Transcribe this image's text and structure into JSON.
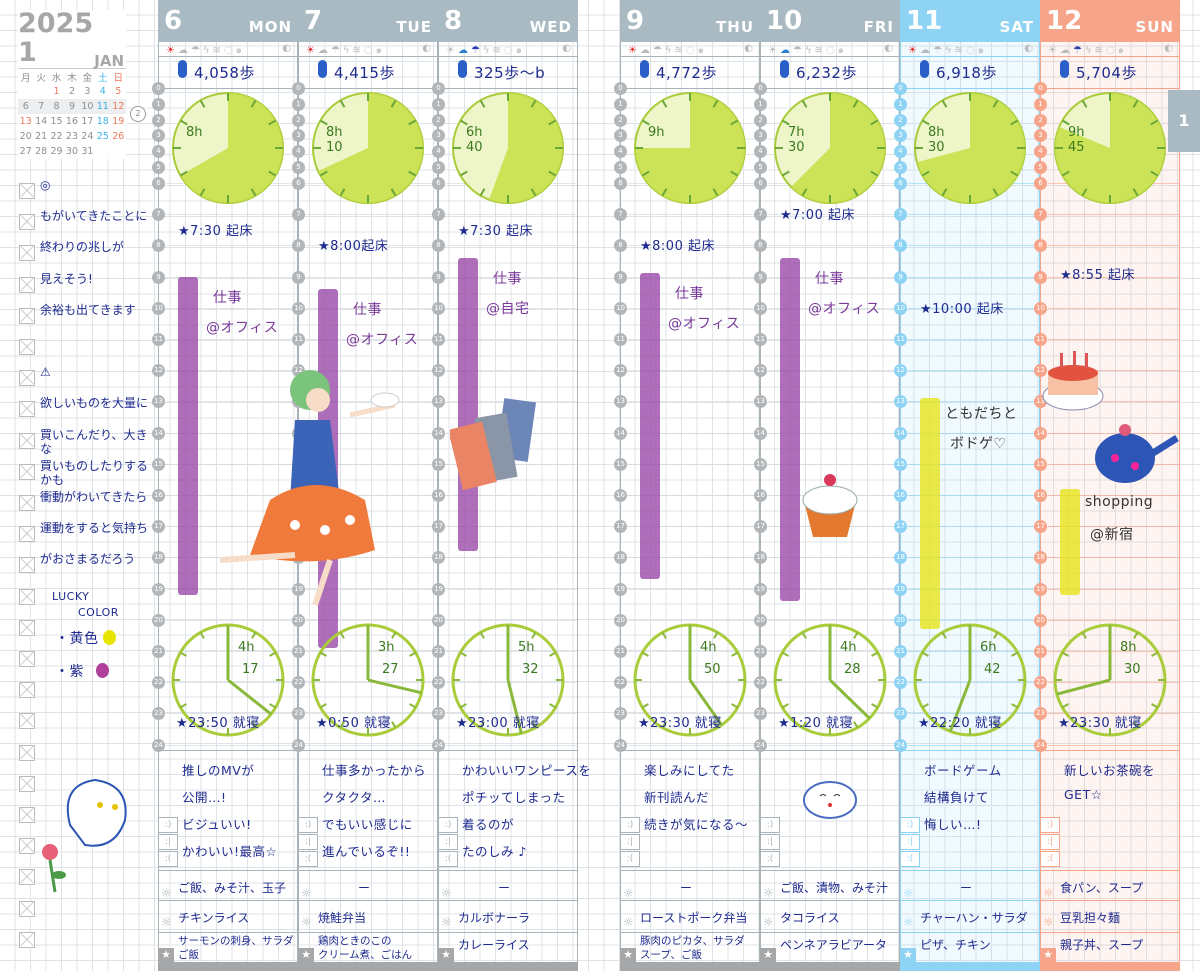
{
  "calendar": {
    "year": "2025",
    "month": "1",
    "month_name": "JAN",
    "weekdays": [
      "月",
      "火",
      "水",
      "木",
      "金",
      "土",
      "日"
    ],
    "weeks": [
      [
        "",
        "",
        "1",
        "2",
        "3",
        "4",
        "5"
      ],
      [
        "6",
        "7",
        "8",
        "9",
        "10",
        "11",
        "12"
      ],
      [
        "13",
        "14",
        "15",
        "16",
        "17",
        "18",
        "19"
      ],
      [
        "20",
        "21",
        "22",
        "23",
        "24",
        "25",
        "26"
      ],
      [
        "27",
        "28",
        "29",
        "30",
        "31",
        "",
        ""
      ]
    ],
    "current_week_badge": "2"
  },
  "notes": {
    "lines": [
      "◎",
      "もがいてきたことに",
      "終わりの兆しが",
      "見えそう!",
      "余裕も出てきます",
      "",
      "⚠",
      "欲しいものを大量に",
      "買いこんだり、大きな",
      "買いものしたりするかも",
      "衝動がわいてきたら",
      "運動をすると気持ち",
      "がおさまるだろう"
    ],
    "lucky_title_1": "LUCKY",
    "lucky_title_2": "COLOR",
    "lucky_colors": [
      {
        "label": "・黄色",
        "swatch": "#e8e400"
      },
      {
        "label": "・紫",
        "swatch": "#b0409a"
      }
    ]
  },
  "month_tab": "1",
  "colors": {
    "weekday": "#a9bac3",
    "saturday": "#8fd3f4",
    "sunday": "#f6a58a",
    "ink": "#1f2b8f",
    "sleep": "#c8e04a",
    "work": "#9a4aa8",
    "play": "#e6e41a"
  },
  "weather_icons": [
    "sun-icon",
    "cloud-icon",
    "umbrella-icon",
    "lightning-icon",
    "wind-icon",
    "snow-icon",
    "typhoon-icon",
    "moon-icon"
  ],
  "days": [
    {
      "date": "6",
      "dow": "MON",
      "theme": "weekday",
      "weather": [
        "sun-icon"
      ],
      "steps": "4,058歩",
      "sleep": "8h",
      "sleep_hours": 8,
      "wake": "★7:30 起床",
      "wake_hour": 7.5,
      "event": [
        "仕事",
        "@オフィス"
      ],
      "bar": [
        9,
        19.2
      ],
      "bar_kind": "work",
      "free": [
        "4h",
        "17"
      ],
      "free_hours": 4.28,
      "bed": "★23:50 就寝",
      "diary": [
        "推しのMVが",
        "公開…!",
        "ビジュいい!",
        "かわいい!最高☆"
      ],
      "breakfast": [
        "ご飯、みそ汁、玉子"
      ],
      "lunch": [
        "チキンライス"
      ],
      "dinner": [
        "サーモンの刺身、サラダ",
        "ご飯"
      ]
    },
    {
      "date": "7",
      "dow": "TUE",
      "theme": "weekday",
      "weather": [
        "sun-icon"
      ],
      "steps": "4,415歩",
      "sleep": "8h 10",
      "sleep_hours": 8.17,
      "wake": "★8:00起床",
      "wake_hour": 8,
      "event": [
        "仕事",
        "@オフィス"
      ],
      "bar": [
        9.4,
        20.9
      ],
      "bar_kind": "work",
      "free": [
        "3h",
        "27"
      ],
      "free_hours": 3.45,
      "bed": "★0:50 就寝",
      "diary": [
        "仕事多かったから",
        "クタクタ…",
        "でもいい感じに",
        "進んでいるぞ!!"
      ],
      "breakfast": [
        "ー"
      ],
      "lunch": [
        "焼鮭弁当"
      ],
      "dinner": [
        "鶏肉ときのこの",
        "クリーム煮、ごはん"
      ]
    },
    {
      "date": "8",
      "dow": "WED",
      "theme": "weekday",
      "weather": [
        "cloud-icon",
        "umbrella-icon"
      ],
      "steps": "325歩〜b",
      "sleep": "6h 40",
      "sleep_hours": 6.67,
      "wake": "★7:30 起床",
      "wake_hour": 7.5,
      "event": [
        "仕事",
        "@自宅"
      ],
      "bar": [
        8.4,
        17.8
      ],
      "bar_kind": "work",
      "free": [
        "5h",
        "32"
      ],
      "free_hours": 5.53,
      "bed": "★23:00 就寝",
      "diary": [
        "かわいいワンピースを",
        "ポチッてしまった",
        "着るのが",
        "たのしみ ♪"
      ],
      "breakfast": [
        "ー"
      ],
      "lunch": [
        "カルボナーラ"
      ],
      "dinner": [
        "カレーライス"
      ]
    },
    {
      "date": "9",
      "dow": "THU",
      "theme": "weekday",
      "weather": [
        "sun-icon"
      ],
      "steps": "4,772歩",
      "sleep": "9h",
      "sleep_hours": 9,
      "wake": "★8:00 起床",
      "wake_hour": 8,
      "event": [
        "仕事",
        "@オフィス"
      ],
      "bar": [
        8.9,
        18.7
      ],
      "bar_kind": "work",
      "free": [
        "4h",
        "50"
      ],
      "free_hours": 4.83,
      "bed": "★23:30 就寝",
      "diary": [
        "楽しみにしてた",
        "新刊読んだ",
        "続きが気になる〜"
      ],
      "breakfast": [
        "ー"
      ],
      "lunch": [
        "ローストポーク弁当"
      ],
      "dinner": [
        "豚肉のピカタ、サラダ",
        "スープ、ご飯"
      ]
    },
    {
      "date": "10",
      "dow": "FRI",
      "theme": "weekday",
      "weather": [
        "cloud-icon"
      ],
      "steps": "6,232歩",
      "sleep": "7h 30",
      "sleep_hours": 7.5,
      "wake": "★7:00 起床",
      "wake_hour": 7,
      "event": [
        "仕事",
        "@オフィス"
      ],
      "bar": [
        8.4,
        19.4
      ],
      "bar_kind": "work",
      "free": [
        "4h",
        "28"
      ],
      "free_hours": 4.47,
      "bed": "★1:20 就寝",
      "diary": [],
      "breakfast": [
        "ご飯、漬物、みそ汁"
      ],
      "lunch": [
        "タコライス"
      ],
      "dinner": [
        "ペンネアラビアータ"
      ]
    },
    {
      "date": "11",
      "dow": "SAT",
      "theme": "saturday",
      "weather": [
        "sun-icon"
      ],
      "steps": "6,918歩",
      "sleep": "8h 30",
      "sleep_hours": 8.5,
      "wake": "★10:00 起床",
      "wake_hour": 10,
      "event": [
        "ともだちと",
        "ボドゲ♡"
      ],
      "bar": [
        12.9,
        20.3
      ],
      "bar_kind": "play",
      "free": [
        "6h",
        "42"
      ],
      "free_hours": 6.7,
      "bed": "★22:20 就寝",
      "diary": [
        "ボードゲーム",
        "結構負けて",
        "悔しい…!"
      ],
      "breakfast": [
        "ー"
      ],
      "lunch": [
        "チャーハン・サラダ"
      ],
      "dinner": [
        "ピザ、チキン"
      ]
    },
    {
      "date": "12",
      "dow": "SUN",
      "theme": "sunday",
      "weather": [
        "umbrella-icon"
      ],
      "steps": "5,704歩",
      "sleep": "9h 45",
      "sleep_hours": 9.75,
      "wake": "★8:55 起床",
      "wake_hour": 8.92,
      "event": [
        "shopping",
        "@新宿"
      ],
      "bar": [
        15.8,
        19.2
      ],
      "bar_kind": "play",
      "free": [
        "8h",
        "30"
      ],
      "free_hours": 8.5,
      "bed": "★23:30 就寝",
      "diary": [
        "新しいお茶碗を",
        "GET☆"
      ],
      "breakfast": [
        "食パン、スープ"
      ],
      "lunch": [
        "豆乳担々麺"
      ],
      "dinner": [
        "親子丼、スープ"
      ]
    }
  ]
}
